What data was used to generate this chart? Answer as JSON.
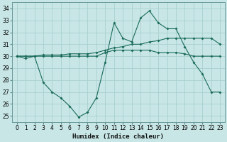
{
  "title": "",
  "xlabel": "Humidex (Indice chaleur)",
  "bg_color": "#c8e6e6",
  "grid_color": "#a8d0d0",
  "line_color": "#1a6b5a",
  "xlim": [
    -0.5,
    23.5
  ],
  "ylim": [
    24.5,
    34.5
  ],
  "yticks": [
    25,
    26,
    27,
    28,
    29,
    30,
    31,
    32,
    33,
    34
  ],
  "xticks": [
    0,
    1,
    2,
    3,
    4,
    5,
    6,
    7,
    8,
    9,
    10,
    11,
    12,
    13,
    14,
    15,
    16,
    17,
    18,
    19,
    20,
    21,
    22,
    23
  ],
  "series": [
    {
      "x": [
        0,
        1,
        2,
        3,
        4,
        5,
        6,
        7,
        8,
        9,
        10,
        11,
        12,
        13,
        14,
        15,
        16,
        17,
        18,
        19,
        20,
        21,
        22,
        23
      ],
      "y": [
        30,
        30,
        30,
        30.1,
        30.1,
        30.1,
        30.2,
        30.2,
        30.2,
        30.3,
        30.5,
        30.7,
        30.8,
        31.0,
        31.0,
        31.2,
        31.3,
        31.5,
        31.5,
        31.5,
        31.5,
        31.5,
        31.5,
        31.0
      ]
    },
    {
      "x": [
        0,
        1,
        2,
        3,
        4,
        5,
        6,
        7,
        8,
        9,
        10,
        11,
        12,
        13,
        14,
        15,
        16,
        17,
        18,
        19,
        20,
        21,
        22,
        23
      ],
      "y": [
        30,
        30,
        30,
        30,
        30,
        30,
        30,
        30,
        30,
        30,
        30.3,
        30.5,
        30.5,
        30.5,
        30.5,
        30.5,
        30.3,
        30.3,
        30.3,
        30.2,
        30.0,
        30.0,
        30.0,
        30.0
      ]
    },
    {
      "x": [
        0,
        1,
        2,
        3,
        4,
        5,
        6,
        7,
        8,
        9,
        10,
        11,
        12,
        13,
        14,
        15,
        16,
        17,
        18,
        19,
        20,
        21,
        22,
        23
      ],
      "y": [
        30,
        29.8,
        30,
        27.8,
        27.0,
        26.5,
        25.8,
        24.9,
        25.3,
        26.5,
        29.5,
        32.8,
        31.5,
        31.2,
        33.2,
        33.8,
        32.8,
        32.3,
        32.3,
        30.8,
        29.5,
        28.5,
        27.0,
        27.0
      ]
    }
  ]
}
